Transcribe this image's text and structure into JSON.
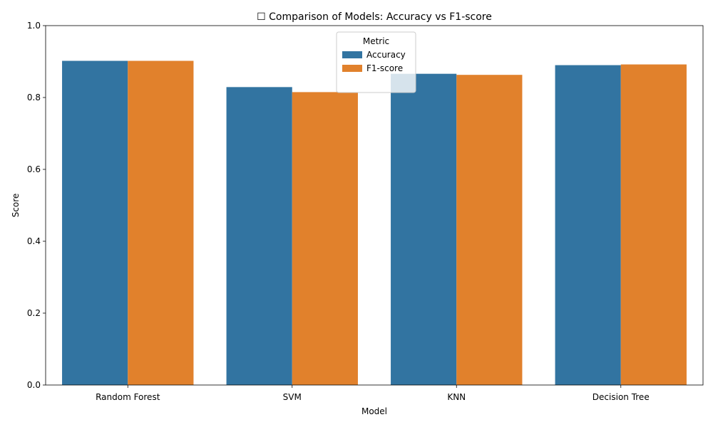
{
  "chart_data": {
    "type": "bar",
    "title": "☐ Comparison of Models: Accuracy vs F1-score",
    "xlabel": "Model",
    "ylabel": "Score",
    "ylim": [
      0,
      1.0
    ],
    "yticks": [
      "0.0",
      "0.2",
      "0.4",
      "0.6",
      "0.8",
      "1.0"
    ],
    "categories": [
      "Random Forest",
      "SVM",
      "KNN",
      "Decision Tree"
    ],
    "series": [
      {
        "name": "Accuracy",
        "color": "#3274a1",
        "values": [
          0.902,
          0.829,
          0.866,
          0.89
        ]
      },
      {
        "name": "F1-score",
        "color": "#e1812c",
        "values": [
          0.902,
          0.815,
          0.863,
          0.892
        ]
      }
    ],
    "legend": {
      "title": "Metric",
      "placement": "top-center"
    },
    "grid": false
  }
}
